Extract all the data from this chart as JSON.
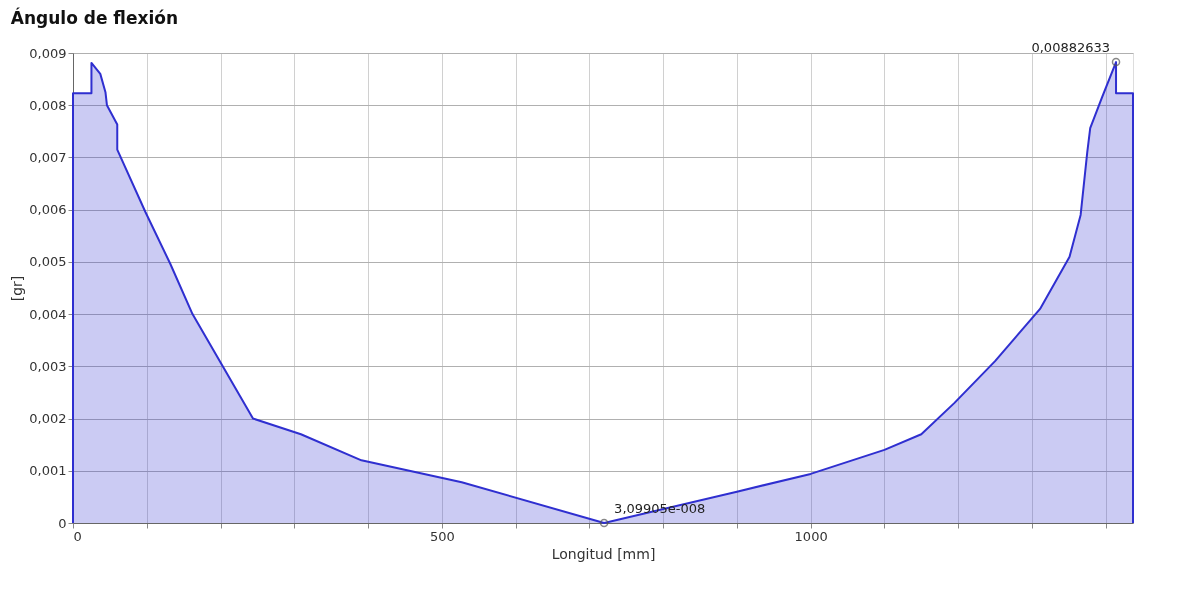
{
  "chart_data": {
    "type": "area",
    "title": "Ángulo de flexión",
    "xlabel": "Longitud [mm]",
    "ylabel": "[gr]",
    "series": [
      {
        "color": "#2f2fd0",
        "x": [
          0,
          0,
          25,
          25,
          37,
          44,
          46,
          60,
          60,
          98,
          132,
          162,
          203,
          244,
          309,
          391,
          527,
          720,
          900,
          1000,
          1100,
          1150,
          1195,
          1250,
          1311,
          1351,
          1366,
          1375,
          1379,
          1395,
          1414,
          1414,
          1437,
          1437
        ],
        "values": [
          0,
          0.00823,
          0.00823,
          0.00881,
          0.0086,
          0.00825,
          0.008,
          0.00763,
          0.00715,
          0.00596,
          0.00496,
          0.004,
          0.003,
          0.002,
          0.0017,
          0.0012,
          0.00078,
          3.09905e-08,
          0.0006,
          0.00094,
          0.0014,
          0.0017,
          0.0023,
          0.0031,
          0.0041,
          0.0051,
          0.0059,
          0.0071,
          0.00756,
          0.00815,
          0.00882633,
          0.00823,
          0.00823,
          0
        ]
      },
      {
        "type": "scatter",
        "marker": "circle",
        "color": "#555555",
        "x": [
          720,
          1414
        ],
        "values": [
          3.09905e-08,
          0.00882633
        ]
      }
    ],
    "xlim": [
      0,
      1437
    ],
    "xticks": [
      0,
      {
        "value": 100,
        "label": null
      },
      {
        "value": 200,
        "label": null
      },
      {
        "value": 300,
        "label": null
      },
      {
        "value": 400,
        "label": null
      },
      500,
      {
        "value": 600,
        "label": null
      },
      {
        "value": 700,
        "label": null
      },
      {
        "value": 800,
        "label": null
      },
      {
        "value": 900,
        "label": null
      },
      1000,
      {
        "value": 1100,
        "label": null
      },
      {
        "value": 1200,
        "label": null
      },
      {
        "value": 1300,
        "label": null
      },
      {
        "value": 1400,
        "label": null
      }
    ],
    "ylim": [
      0,
      0.009
    ],
    "yticks": [
      0,
      {
        "value": 0.001,
        "label": "0,001"
      },
      {
        "value": 0.002,
        "label": "0,002"
      },
      {
        "value": 0.003,
        "label": "0,003"
      },
      {
        "value": 0.004,
        "label": "0,004"
      },
      {
        "value": 0.005,
        "label": "0,005"
      },
      {
        "value": 0.006,
        "label": "0,006"
      },
      {
        "value": 0.007,
        "label": "0,007"
      },
      {
        "value": 0.008,
        "label": "0,008"
      },
      {
        "value": 0.009,
        "label": "0,009"
      }
    ],
    "grid": true,
    "annotations": [
      {
        "text": "0,00882633",
        "x": 1414,
        "y": 0.00882633
      },
      {
        "text": "3,09905e-008",
        "x": 720,
        "y": 3.09905e-08
      }
    ]
  }
}
